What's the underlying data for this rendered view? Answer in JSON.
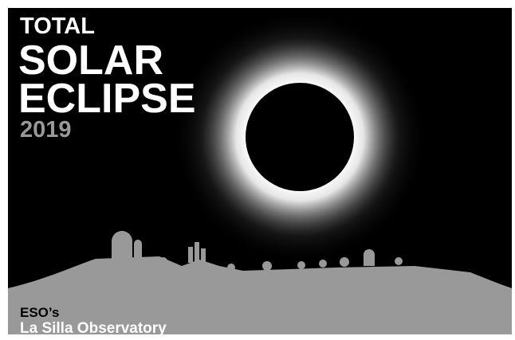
{
  "title": {
    "line1": "TOTAL",
    "line2": "SOLAR",
    "line3": "ECLIPSE",
    "year": "2019"
  },
  "footer": {
    "line1": "ESO’s",
    "line2": "La Silla Observatory"
  }
}
